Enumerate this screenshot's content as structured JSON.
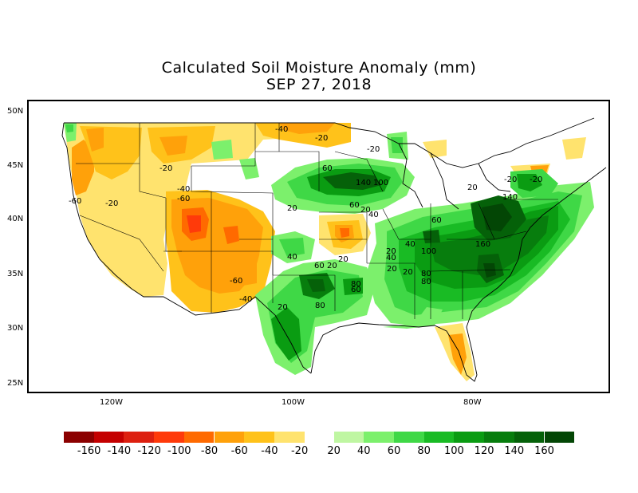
{
  "title": "Calculated Soil Moisture Anomaly (mm)",
  "date": "SEP 27, 2018",
  "lat_labels": [
    "50N",
    "45N",
    "40N",
    "35N",
    "30N",
    "25N"
  ],
  "lon_labels": [
    "120W",
    "100W",
    "80W"
  ],
  "legend": {
    "dry_labels": [
      "-160",
      "-140",
      "-120",
      "-100",
      "-80",
      "-60",
      "-40",
      "-20"
    ],
    "wet_labels": [
      "20",
      "40",
      "60",
      "80",
      "100",
      "120",
      "140",
      "160"
    ],
    "dry_colors": [
      "#8b0000",
      "#c40000",
      "#dd2010",
      "#ff3a0a",
      "#ff6a00",
      "#ffa10a",
      "#ffc21a",
      "#ffe36e"
    ],
    "wet_colors": [
      "#bff6a2",
      "#7cf06c",
      "#3fd846",
      "#19bb24",
      "#0a9c12",
      "#077d0d",
      "#056109",
      "#034605"
    ]
  },
  "contour_labels": [
    "-40",
    "-20",
    "-20",
    "-20",
    "-40",
    "-60",
    "-60",
    "-20",
    "-60",
    "-40",
    "60",
    "140",
    "100",
    "60",
    "20",
    "20",
    "40",
    "20",
    "60",
    "140",
    "160",
    "40",
    "100",
    "20",
    "40",
    "80",
    "60",
    "20",
    "80",
    "80",
    "20",
    "80",
    "-20",
    "20",
    "20",
    "40",
    "-20",
    "60",
    "20"
  ]
}
